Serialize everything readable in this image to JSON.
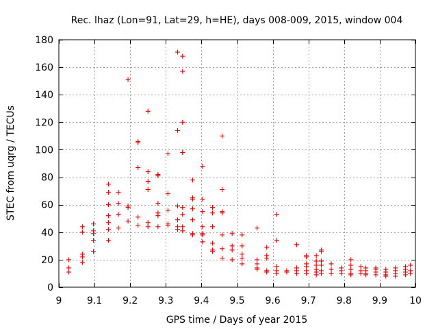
{
  "chart_data": {
    "type": "scatter",
    "title": "Rec. lhaz (Lon=91, Lat=29, h=HE), days 008-009, 2015, window 004",
    "xlabel": "GPS time / Days of year 2015",
    "ylabel": "STEC from uqrg / TECUs",
    "xlim": [
      9,
      10
    ],
    "ylim": [
      0,
      180
    ],
    "xticks": [
      9,
      9.1,
      9.2,
      9.3,
      9.4,
      9.5,
      9.6,
      9.7,
      9.8,
      9.9,
      10
    ],
    "xtick_labels": [
      "9",
      "9.1",
      "9.2",
      "9.3",
      "9.4",
      "9.5",
      "9.6",
      "9.7",
      "9.8",
      "9.9",
      "10"
    ],
    "yticks": [
      0,
      20,
      40,
      60,
      80,
      100,
      120,
      140,
      160,
      180
    ],
    "ytick_labels": [
      "0",
      "20",
      "40",
      "60",
      "80",
      "100",
      "120",
      "140",
      "160",
      "180"
    ],
    "grid": true,
    "marker": "+",
    "color": "#dd0000",
    "points": [
      [
        9.028,
        20
      ],
      [
        9.028,
        14
      ],
      [
        9.028,
        11
      ],
      [
        9.066,
        44
      ],
      [
        9.066,
        40
      ],
      [
        9.066,
        24
      ],
      [
        9.066,
        22
      ],
      [
        9.066,
        18
      ],
      [
        9.097,
        46
      ],
      [
        9.097,
        41
      ],
      [
        9.097,
        39
      ],
      [
        9.097,
        34
      ],
      [
        9.097,
        26
      ],
      [
        9.139,
        75
      ],
      [
        9.139,
        69
      ],
      [
        9.139,
        60
      ],
      [
        9.139,
        52
      ],
      [
        9.139,
        47
      ],
      [
        9.139,
        42
      ],
      [
        9.139,
        34
      ],
      [
        9.167,
        69
      ],
      [
        9.167,
        61
      ],
      [
        9.167,
        53
      ],
      [
        9.167,
        43
      ],
      [
        9.194,
        151
      ],
      [
        9.194,
        59
      ],
      [
        9.194,
        58
      ],
      [
        9.194,
        48
      ],
      [
        9.222,
        106
      ],
      [
        9.222,
        105
      ],
      [
        9.222,
        87
      ],
      [
        9.222,
        51
      ],
      [
        9.222,
        45
      ],
      [
        9.25,
        128
      ],
      [
        9.25,
        84
      ],
      [
        9.25,
        77
      ],
      [
        9.25,
        71
      ],
      [
        9.25,
        47
      ],
      [
        9.25,
        44
      ],
      [
        9.278,
        82
      ],
      [
        9.278,
        81
      ],
      [
        9.278,
        61
      ],
      [
        9.278,
        54
      ],
      [
        9.278,
        52
      ],
      [
        9.278,
        44
      ],
      [
        9.306,
        97
      ],
      [
        9.306,
        68
      ],
      [
        9.306,
        56
      ],
      [
        9.306,
        46
      ],
      [
        9.306,
        45
      ],
      [
        9.333,
        171
      ],
      [
        9.333,
        114
      ],
      [
        9.333,
        59
      ],
      [
        9.333,
        49
      ],
      [
        9.333,
        44
      ],
      [
        9.333,
        42
      ],
      [
        9.347,
        168
      ],
      [
        9.347,
        157
      ],
      [
        9.347,
        120
      ],
      [
        9.347,
        98
      ],
      [
        9.347,
        58
      ],
      [
        9.347,
        53
      ],
      [
        9.347,
        44
      ],
      [
        9.347,
        41
      ],
      [
        9.375,
        78
      ],
      [
        9.375,
        65
      ],
      [
        9.375,
        64
      ],
      [
        9.375,
        57
      ],
      [
        9.375,
        49
      ],
      [
        9.375,
        39
      ],
      [
        9.375,
        38
      ],
      [
        9.403,
        88
      ],
      [
        9.403,
        64
      ],
      [
        9.403,
        55
      ],
      [
        9.403,
        44
      ],
      [
        9.403,
        39
      ],
      [
        9.403,
        38
      ],
      [
        9.403,
        33
      ],
      [
        9.431,
        58
      ],
      [
        9.431,
        54
      ],
      [
        9.431,
        44
      ],
      [
        9.431,
        32
      ],
      [
        9.431,
        27
      ],
      [
        9.431,
        26
      ],
      [
        9.458,
        110
      ],
      [
        9.458,
        71
      ],
      [
        9.458,
        55
      ],
      [
        9.458,
        54
      ],
      [
        9.458,
        38
      ],
      [
        9.458,
        28
      ],
      [
        9.458,
        21
      ],
      [
        9.486,
        39
      ],
      [
        9.486,
        30
      ],
      [
        9.486,
        27
      ],
      [
        9.486,
        20
      ],
      [
        9.514,
        38
      ],
      [
        9.514,
        30
      ],
      [
        9.514,
        24
      ],
      [
        9.514,
        21
      ],
      [
        9.514,
        17
      ],
      [
        9.556,
        43
      ],
      [
        9.556,
        20
      ],
      [
        9.556,
        17
      ],
      [
        9.556,
        14
      ],
      [
        9.556,
        13
      ],
      [
        9.583,
        29
      ],
      [
        9.583,
        23
      ],
      [
        9.583,
        21
      ],
      [
        9.583,
        12
      ],
      [
        9.583,
        11
      ],
      [
        9.611,
        53
      ],
      [
        9.611,
        34
      ],
      [
        9.611,
        15
      ],
      [
        9.611,
        12
      ],
      [
        9.611,
        10
      ],
      [
        9.639,
        11
      ],
      [
        9.639,
        12
      ],
      [
        9.667,
        31
      ],
      [
        9.667,
        14
      ],
      [
        9.667,
        12
      ],
      [
        9.667,
        10
      ],
      [
        9.694,
        23
      ],
      [
        9.694,
        22
      ],
      [
        9.694,
        17
      ],
      [
        9.694,
        15
      ],
      [
        9.694,
        12
      ],
      [
        9.694,
        10
      ],
      [
        9.722,
        23
      ],
      [
        9.722,
        19
      ],
      [
        9.722,
        16
      ],
      [
        9.722,
        13
      ],
      [
        9.722,
        11
      ],
      [
        9.722,
        9
      ],
      [
        9.736,
        27
      ],
      [
        9.736,
        26
      ],
      [
        9.736,
        19
      ],
      [
        9.736,
        16
      ],
      [
        9.736,
        12
      ],
      [
        9.736,
        10
      ],
      [
        9.764,
        17
      ],
      [
        9.764,
        13
      ],
      [
        9.764,
        10
      ],
      [
        9.792,
        14
      ],
      [
        9.792,
        12
      ],
      [
        9.792,
        10
      ],
      [
        9.819,
        20
      ],
      [
        9.819,
        16
      ],
      [
        9.819,
        13
      ],
      [
        9.819,
        10
      ],
      [
        9.819,
        9
      ],
      [
        9.847,
        15
      ],
      [
        9.847,
        12
      ],
      [
        9.847,
        10
      ],
      [
        9.861,
        14
      ],
      [
        9.861,
        12
      ],
      [
        9.861,
        10
      ],
      [
        9.861,
        9
      ],
      [
        9.889,
        14
      ],
      [
        9.889,
        13
      ],
      [
        9.889,
        11
      ],
      [
        9.889,
        9
      ],
      [
        9.917,
        13
      ],
      [
        9.917,
        11
      ],
      [
        9.917,
        9
      ],
      [
        9.917,
        8
      ],
      [
        9.944,
        14
      ],
      [
        9.944,
        12
      ],
      [
        9.944,
        10
      ],
      [
        9.944,
        8
      ],
      [
        9.972,
        15
      ],
      [
        9.972,
        13
      ],
      [
        9.972,
        11
      ],
      [
        9.972,
        9
      ],
      [
        9.986,
        16
      ],
      [
        9.986,
        12
      ],
      [
        9.986,
        10
      ]
    ]
  }
}
